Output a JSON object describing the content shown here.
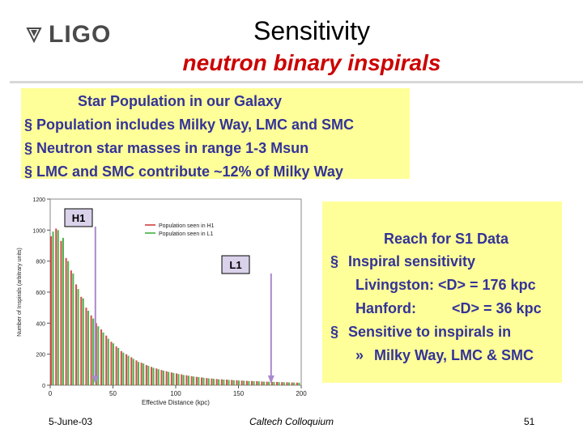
{
  "header": {
    "logo_text": "LIGO",
    "title": "Sensitivity",
    "subtitle": "neutron binary inspirals"
  },
  "box1": {
    "heading": "Star Population in our Galaxy",
    "bullets": [
      "§ Population includes Milky Way, LMC and SMC",
      "§ Neutron star masses in range 1-3 Msun",
      "§ LMC and SMC contribute ~12% of Milky Way"
    ]
  },
  "box2": {
    "heading": "Reach for S1 Data",
    "bullet_marker": "§",
    "item1": "Inspiral sensitivity",
    "livingston": "Livingston:  <D> = 176 kpc",
    "hanford_label": "Hanford:",
    "hanford_value": "<D> = 36 kpc",
    "item2": "Sensitive to inspirals in",
    "sub_marker": "»",
    "sub_item": "Milky Way, LMC & SMC"
  },
  "footer": {
    "date": "5-June-03",
    "venue": "Caltech Colloquium",
    "page": "51"
  },
  "chart_data": {
    "type": "bar",
    "xlabel": "Effective Distance (kpc)",
    "ylabel": "Number of Inspirals (arbitrary units)",
    "xlim": [
      0,
      200
    ],
    "ylim": [
      0,
      1200
    ],
    "xticks": [
      "0",
      "50",
      "100",
      "150",
      "200"
    ],
    "yticks": [
      "0",
      "200",
      "400",
      "600",
      "800",
      "1000",
      "1200"
    ],
    "annotations": [
      "H1",
      "L1"
    ],
    "markers": {
      "H1": 36,
      "L1": 176
    },
    "series": [
      {
        "name": "Population seen in H1",
        "color": "#cc3333",
        "x": [
          2,
          6,
          10,
          14,
          18,
          22,
          26,
          30,
          34,
          38,
          42,
          46,
          50,
          54,
          58,
          62,
          66,
          70,
          74,
          78,
          82,
          86,
          90,
          94,
          98,
          102,
          106,
          110,
          114,
          118,
          122,
          126,
          130,
          134,
          138,
          142,
          146,
          150,
          154,
          158,
          162,
          166,
          170,
          174,
          178,
          182,
          186,
          190,
          194,
          198
        ],
        "values": [
          960,
          1010,
          930,
          820,
          740,
          650,
          570,
          500,
          450,
          400,
          360,
          320,
          280,
          250,
          220,
          200,
          180,
          160,
          145,
          130,
          118,
          108,
          98,
          90,
          82,
          76,
          70,
          64,
          58,
          54,
          50,
          46,
          43,
          40,
          38,
          36,
          34,
          32,
          30,
          28,
          27,
          26,
          24,
          23,
          22,
          21,
          20,
          19,
          18,
          17
        ]
      },
      {
        "name": "Population seen in L1",
        "color": "#33aa33",
        "x": [
          2,
          6,
          10,
          14,
          18,
          22,
          26,
          30,
          34,
          38,
          42,
          46,
          50,
          54,
          58,
          62,
          66,
          70,
          74,
          78,
          82,
          86,
          90,
          94,
          98,
          102,
          106,
          110,
          114,
          118,
          122,
          126,
          130,
          134,
          138,
          142,
          146,
          150,
          154,
          158,
          162,
          166,
          170,
          174,
          178,
          182,
          186,
          190,
          194,
          198
        ],
        "values": [
          990,
          1000,
          950,
          800,
          720,
          620,
          560,
          480,
          430,
          380,
          340,
          300,
          270,
          240,
          210,
          190,
          170,
          150,
          140,
          125,
          112,
          103,
          94,
          86,
          79,
          72,
          66,
          61,
          56,
          52,
          48,
          44,
          41,
          38,
          36,
          34,
          32,
          30,
          29,
          27,
          26,
          25,
          23,
          22,
          21,
          20,
          19,
          18,
          17,
          16
        ]
      }
    ]
  }
}
